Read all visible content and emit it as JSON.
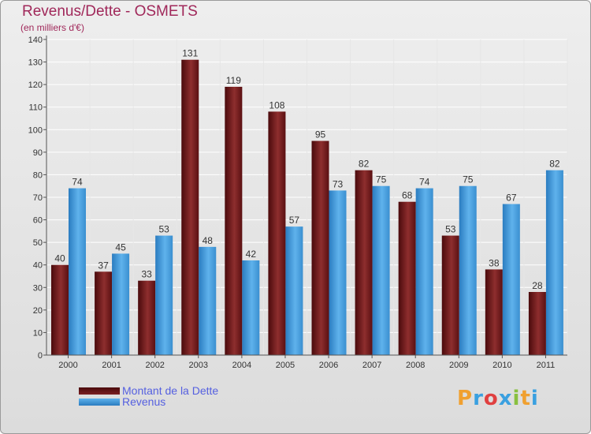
{
  "header": {
    "title": "Revenus/Dette - OSMETS",
    "subtitle": "(en milliers d'€)"
  },
  "legend": [
    {
      "label": "Montant de la Dette",
      "color": "#6b1518"
    },
    {
      "label": "Revenus",
      "color": "#3d95d8"
    }
  ],
  "logo": {
    "text": "Proxiti",
    "letters": [
      "P",
      "r",
      "o",
      "x",
      "i",
      "t",
      "i"
    ],
    "colors": [
      "#f0a030",
      "#3aa0e0",
      "#e04040",
      "#3aa0e0",
      "#88c040",
      "#f0a030",
      "#3aa0e0"
    ]
  },
  "chart_data": {
    "type": "bar",
    "categories": [
      "2000",
      "2001",
      "2002",
      "2003",
      "2004",
      "2005",
      "2006",
      "2007",
      "2008",
      "2009",
      "2010",
      "2011"
    ],
    "series": [
      {
        "name": "Montant de la Dette",
        "values": [
          40,
          37,
          33,
          131,
          119,
          108,
          95,
          82,
          68,
          53,
          38,
          28
        ],
        "color": "#6b1518"
      },
      {
        "name": "Revenus",
        "values": [
          74,
          45,
          53,
          48,
          42,
          57,
          73,
          75,
          74,
          75,
          67,
          82
        ],
        "color": "#3d95d8"
      }
    ],
    "yticks": [
      "0",
      "10",
      "20",
      "30",
      "40",
      "50",
      "60",
      "70",
      "80",
      "90",
      "100",
      "110",
      "120",
      "130",
      "140"
    ],
    "ylim": [
      0,
      140
    ],
    "grid": true,
    "legend_position": "bottom-left"
  }
}
